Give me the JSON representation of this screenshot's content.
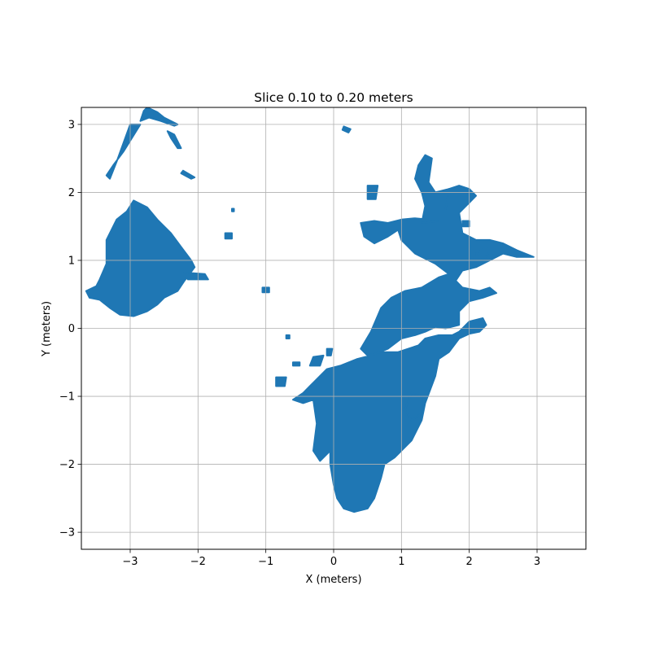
{
  "chart_data": {
    "type": "scatter",
    "title": "Slice 0.10 to 0.20 meters",
    "xlabel": "X (meters)",
    "ylabel": "Y (meters)",
    "xlim": [
      -3.72,
      3.72
    ],
    "ylim": [
      -3.25,
      3.25
    ],
    "xticks": [
      -3,
      -2,
      -1,
      0,
      1,
      2,
      3
    ],
    "yticks": [
      -3,
      -2,
      -1,
      0,
      1,
      2,
      3
    ],
    "xtick_labels": [
      "−3",
      "−2",
      "−1",
      "0",
      "1",
      "2",
      "3"
    ],
    "ytick_labels": [
      "−3",
      "−2",
      "−1",
      "0",
      "1",
      "2",
      "3"
    ],
    "grid": true,
    "color": "#1f77b4",
    "series": [
      {
        "regions": [
          [
            [
              -3.65,
              0.55
            ],
            [
              -3.5,
              0.62
            ],
            [
              -3.45,
              0.72
            ],
            [
              -3.35,
              0.95
            ],
            [
              -3.35,
              1.3
            ],
            [
              -3.2,
              1.6
            ],
            [
              -3.05,
              1.72
            ],
            [
              -2.95,
              1.88
            ],
            [
              -2.75,
              1.78
            ],
            [
              -2.6,
              1.6
            ],
            [
              -2.4,
              1.4
            ],
            [
              -2.25,
              1.2
            ],
            [
              -2.1,
              1.0
            ],
            [
              -2.05,
              0.9
            ],
            [
              -2.2,
              0.7
            ],
            [
              -2.3,
              0.55
            ],
            [
              -2.5,
              0.45
            ],
            [
              -2.6,
              0.35
            ],
            [
              -2.75,
              0.25
            ],
            [
              -2.95,
              0.18
            ],
            [
              -3.15,
              0.2
            ],
            [
              -3.3,
              0.3
            ],
            [
              -3.45,
              0.42
            ],
            [
              -3.6,
              0.45
            ]
          ],
          [
            [
              -2.2,
              0.82
            ],
            [
              -1.9,
              0.8
            ],
            [
              -1.85,
              0.72
            ],
            [
              -2.15,
              0.72
            ]
          ],
          [
            [
              -3.0,
              3.0
            ],
            [
              -2.85,
              3.0
            ],
            [
              -3.1,
              2.6
            ],
            [
              -3.25,
              2.4
            ],
            [
              -3.35,
              2.25
            ],
            [
              -3.3,
              2.2
            ],
            [
              -3.2,
              2.45
            ]
          ],
          [
            [
              -2.75,
              3.25
            ],
            [
              -2.6,
              3.18
            ],
            [
              -2.5,
              3.1
            ],
            [
              -2.3,
              3.0
            ],
            [
              -2.35,
              2.98
            ],
            [
              -2.55,
              3.05
            ],
            [
              -2.72,
              3.1
            ],
            [
              -2.85,
              3.05
            ],
            [
              -2.8,
              3.2
            ]
          ],
          [
            [
              -2.45,
              2.9
            ],
            [
              -2.35,
              2.85
            ],
            [
              -2.25,
              2.65
            ],
            [
              -2.3,
              2.65
            ],
            [
              -2.4,
              2.8
            ]
          ],
          [
            [
              -2.22,
              2.32
            ],
            [
              -2.05,
              2.22
            ],
            [
              -2.1,
              2.2
            ],
            [
              -2.25,
              2.28
            ]
          ],
          [
            [
              -1.6,
              1.4
            ],
            [
              -1.5,
              1.4
            ],
            [
              -1.5,
              1.32
            ],
            [
              -1.6,
              1.32
            ]
          ],
          [
            [
              -1.5,
              1.76
            ],
            [
              -1.47,
              1.76
            ],
            [
              -1.47,
              1.72
            ],
            [
              -1.5,
              1.72
            ]
          ],
          [
            [
              -1.05,
              0.6
            ],
            [
              -0.95,
              0.6
            ],
            [
              -0.95,
              0.53
            ],
            [
              -1.05,
              0.53
            ]
          ],
          [
            [
              0.15,
              2.97
            ],
            [
              0.25,
              2.93
            ],
            [
              0.22,
              2.88
            ],
            [
              0.13,
              2.92
            ]
          ],
          [
            [
              0.5,
              2.1
            ],
            [
              0.65,
              2.1
            ],
            [
              0.62,
              1.9
            ],
            [
              0.5,
              1.9
            ]
          ],
          [
            [
              0.4,
              1.55
            ],
            [
              0.6,
              1.58
            ],
            [
              0.8,
              1.55
            ],
            [
              1.0,
              1.6
            ],
            [
              1.2,
              1.62
            ],
            [
              1.4,
              1.6
            ],
            [
              1.6,
              1.8
            ],
            [
              1.7,
              2.05
            ],
            [
              1.85,
              2.1
            ],
            [
              2.0,
              2.05
            ],
            [
              2.1,
              1.95
            ],
            [
              2.0,
              1.85
            ],
            [
              1.85,
              1.7
            ],
            [
              1.9,
              1.4
            ],
            [
              2.1,
              1.3
            ],
            [
              2.3,
              1.3
            ],
            [
              2.5,
              1.25
            ],
            [
              2.7,
              1.15
            ],
            [
              2.95,
              1.05
            ],
            [
              2.7,
              1.05
            ],
            [
              2.5,
              1.1
            ],
            [
              2.3,
              1.0
            ],
            [
              2.1,
              0.9
            ],
            [
              1.9,
              0.85
            ],
            [
              1.8,
              0.7
            ],
            [
              1.9,
              0.6
            ],
            [
              2.15,
              0.55
            ],
            [
              2.3,
              0.6
            ],
            [
              2.4,
              0.52
            ],
            [
              2.2,
              0.45
            ],
            [
              2.0,
              0.4
            ],
            [
              1.85,
              0.25
            ],
            [
              1.85,
              0.05
            ],
            [
              1.65,
              0.0
            ],
            [
              1.5,
              0.02
            ],
            [
              1.35,
              -0.05
            ],
            [
              1.2,
              -0.1
            ],
            [
              1.0,
              -0.15
            ],
            [
              0.8,
              -0.3
            ],
            [
              0.55,
              -0.4
            ],
            [
              0.35,
              -0.45
            ],
            [
              0.1,
              -0.55
            ],
            [
              -0.1,
              -0.6
            ],
            [
              -0.3,
              -0.8
            ],
            [
              -0.45,
              -0.95
            ],
            [
              -0.6,
              -1.05
            ],
            [
              -0.45,
              -1.1
            ],
            [
              -0.3,
              -1.05
            ],
            [
              -0.25,
              -1.4
            ],
            [
              -0.3,
              -1.8
            ],
            [
              -0.2,
              -1.95
            ],
            [
              -0.05,
              -1.8
            ],
            [
              -0.05,
              -2.0
            ],
            [
              0.0,
              -2.3
            ],
            [
              0.05,
              -2.5
            ],
            [
              0.15,
              -2.65
            ],
            [
              0.3,
              -2.7
            ],
            [
              0.5,
              -2.65
            ],
            [
              0.6,
              -2.5
            ],
            [
              0.65,
              -2.35
            ],
            [
              0.7,
              -2.2
            ],
            [
              0.75,
              -2.0
            ],
            [
              0.9,
              -1.9
            ],
            [
              1.15,
              -1.65
            ],
            [
              1.3,
              -1.35
            ],
            [
              1.35,
              -1.1
            ],
            [
              1.5,
              -0.7
            ],
            [
              1.55,
              -0.45
            ],
            [
              1.7,
              -0.35
            ],
            [
              1.85,
              -0.15
            ],
            [
              2.0,
              -0.08
            ],
            [
              2.15,
              -0.05
            ],
            [
              2.25,
              0.05
            ],
            [
              2.2,
              0.15
            ],
            [
              2.0,
              0.1
            ],
            [
              1.85,
              -0.05
            ],
            [
              1.75,
              -0.1
            ],
            [
              1.55,
              -0.1
            ],
            [
              1.35,
              -0.15
            ],
            [
              1.25,
              -0.25
            ],
            [
              1.1,
              -0.3
            ],
            [
              0.95,
              -0.35
            ],
            [
              0.7,
              -0.35
            ],
            [
              0.5,
              -0.4
            ],
            [
              0.4,
              -0.3
            ],
            [
              0.55,
              -0.05
            ],
            [
              0.7,
              0.3
            ],
            [
              0.85,
              0.45
            ],
            [
              1.05,
              0.55
            ],
            [
              1.3,
              0.6
            ],
            [
              1.55,
              0.75
            ],
            [
              1.7,
              0.8
            ],
            [
              1.5,
              0.95
            ],
            [
              1.2,
              1.1
            ],
            [
              1.0,
              1.3
            ],
            [
              0.95,
              1.45
            ],
            [
              0.8,
              1.35
            ],
            [
              0.6,
              1.25
            ],
            [
              0.45,
              1.35
            ]
          ],
          [
            [
              1.3,
              1.55
            ],
            [
              1.55,
              1.58
            ],
            [
              1.65,
              1.75
            ],
            [
              1.7,
              2.05
            ],
            [
              1.5,
              2.0
            ],
            [
              1.4,
              2.15
            ],
            [
              1.45,
              2.5
            ],
            [
              1.35,
              2.55
            ],
            [
              1.25,
              2.4
            ],
            [
              1.2,
              2.2
            ],
            [
              1.3,
              2.0
            ],
            [
              1.35,
              1.8
            ]
          ],
          [
            [
              1.15,
              -0.95
            ],
            [
              1.3,
              -1.0
            ],
            [
              1.3,
              -1.25
            ],
            [
              1.15,
              -1.35
            ],
            [
              1.05,
              -1.2
            ]
          ],
          [
            [
              2.1,
              1.1
            ],
            [
              2.25,
              1.2
            ],
            [
              2.3,
              1.08
            ],
            [
              2.15,
              1.0
            ]
          ],
          [
            [
              1.9,
              1.58
            ],
            [
              2.0,
              1.58
            ],
            [
              2.0,
              1.5
            ],
            [
              1.9,
              1.5
            ]
          ],
          [
            [
              -0.3,
              -0.42
            ],
            [
              -0.15,
              -0.4
            ],
            [
              -0.2,
              -0.55
            ],
            [
              -0.35,
              -0.55
            ]
          ],
          [
            [
              -0.85,
              -0.72
            ],
            [
              -0.7,
              -0.72
            ],
            [
              -0.72,
              -0.85
            ],
            [
              -0.85,
              -0.85
            ]
          ],
          [
            [
              -0.1,
              -0.3
            ],
            [
              -0.02,
              -0.3
            ],
            [
              -0.04,
              -0.4
            ],
            [
              -0.1,
              -0.4
            ]
          ],
          [
            [
              -0.7,
              -0.1
            ],
            [
              -0.65,
              -0.1
            ],
            [
              -0.65,
              -0.15
            ],
            [
              -0.7,
              -0.15
            ]
          ],
          [
            [
              -0.6,
              -0.5
            ],
            [
              -0.5,
              -0.5
            ],
            [
              -0.5,
              -0.55
            ],
            [
              -0.6,
              -0.55
            ]
          ]
        ]
      }
    ]
  }
}
